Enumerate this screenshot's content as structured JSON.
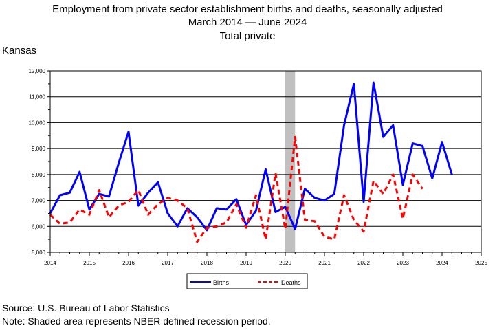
{
  "title": {
    "line1": "Employment from private sector establishment births and deaths, seasonally adjusted",
    "line2": "March 2014 — June 2024",
    "line3": "Total private"
  },
  "region_label": "Kansas",
  "source": "Source: U.S. Bureau of Labor Statistics",
  "note": "Note: Shaded area represents NBER defined recession period.",
  "colors": {
    "births": "#0000ff",
    "deaths": "#ff0000",
    "recession": "#c0c0c0",
    "grid": "#000000"
  },
  "chart_data": {
    "type": "line",
    "xlim": [
      2014,
      2025
    ],
    "ylim": [
      5000,
      12000
    ],
    "x_ticks": [
      "2014",
      "2015",
      "2016",
      "2017",
      "2018",
      "2019",
      "2020",
      "2021",
      "2022",
      "2023",
      "2024",
      "2025"
    ],
    "y_ticks": [
      "5,000",
      "6,000",
      "7,000",
      "8,000",
      "9,000",
      "10,000",
      "11,000",
      "12,000"
    ],
    "grid": true,
    "legend_position": "bottom",
    "recession": [
      2020.0,
      2020.25
    ],
    "series": [
      {
        "name": "Births",
        "x": [
          2014.0,
          2014.25,
          2014.5,
          2014.75,
          2015.0,
          2015.25,
          2015.5,
          2015.75,
          2016.0,
          2016.25,
          2016.5,
          2016.75,
          2017.0,
          2017.25,
          2017.5,
          2017.75,
          2018.0,
          2018.25,
          2018.5,
          2018.75,
          2019.0,
          2019.25,
          2019.5,
          2019.75,
          2020.0,
          2020.25,
          2020.5,
          2020.75,
          2021.0,
          2021.25,
          2021.5,
          2021.75,
          2022.0,
          2022.25,
          2022.5,
          2022.75,
          2023.0,
          2023.25,
          2023.5,
          2023.75,
          2024.0,
          2024.25
        ],
        "values": [
          6500,
          7200,
          7300,
          8100,
          6650,
          7250,
          7150,
          8450,
          9650,
          6800,
          7300,
          7700,
          6500,
          6000,
          6700,
          6350,
          5850,
          6700,
          6650,
          7050,
          6050,
          6600,
          8200,
          6550,
          6750,
          5900,
          7450,
          7100,
          7000,
          7250,
          9900,
          11500,
          6950,
          11550,
          9450,
          9900,
          7600,
          9200,
          9100,
          7850,
          9250,
          8000
        ]
      },
      {
        "name": "Deaths",
        "x": [
          2014.0,
          2014.25,
          2014.5,
          2014.75,
          2015.0,
          2015.25,
          2015.5,
          2015.75,
          2016.0,
          2016.25,
          2016.5,
          2016.75,
          2017.0,
          2017.25,
          2017.5,
          2017.75,
          2018.0,
          2018.25,
          2018.5,
          2018.75,
          2019.0,
          2019.25,
          2019.5,
          2019.75,
          2020.0,
          2020.25,
          2020.5,
          2020.75,
          2021.0,
          2021.25,
          2021.5,
          2021.75,
          2022.0,
          2022.25,
          2022.5,
          2022.75,
          2023.0,
          2023.25,
          2023.5
        ],
        "values": [
          6450,
          6100,
          6150,
          6650,
          6450,
          7400,
          6350,
          6800,
          6950,
          7400,
          6450,
          6850,
          7100,
          7000,
          6700,
          5400,
          5950,
          6000,
          6150,
          6850,
          5950,
          7200,
          5500,
          8050,
          5900,
          9450,
          6250,
          6200,
          5600,
          5500,
          7200,
          6250,
          5800,
          7750,
          7250,
          8000,
          6300,
          8000,
          7450
        ]
      }
    ]
  },
  "legend": {
    "births": "Births",
    "deaths": "Deaths"
  }
}
